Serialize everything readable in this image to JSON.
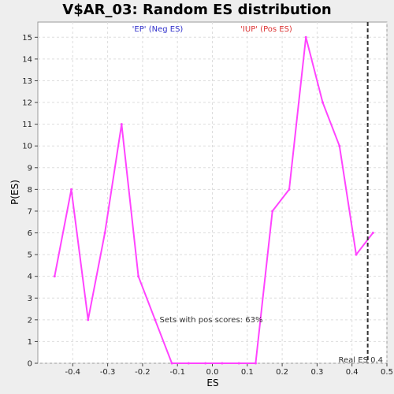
{
  "chart_data": {
    "type": "line",
    "title": "V$AR_03: Random ES distribution",
    "xlabel": "ES",
    "ylabel": "P(ES)",
    "xlim": [
      -0.5,
      0.5
    ],
    "ylim": [
      0,
      15.7
    ],
    "x_ticks": [
      -0.4,
      -0.3,
      -0.2,
      -0.1,
      0.0,
      0.1,
      0.2,
      0.3,
      0.4,
      0.5
    ],
    "x_tick_labels": [
      "-0.4",
      "-0.3",
      "-0.2",
      "-0.1",
      "0.0",
      "0.1",
      "0.2",
      "0.3",
      "0.4",
      "0.5"
    ],
    "y_ticks": [
      0,
      1,
      2,
      3,
      4,
      5,
      6,
      7,
      8,
      9,
      10,
      11,
      12,
      13,
      14,
      15
    ],
    "y_tick_labels": [
      "0",
      "1",
      "2",
      "3",
      "4",
      "5",
      "6",
      "7",
      "8",
      "9",
      "10",
      "11",
      "12",
      "13",
      "14",
      "15"
    ],
    "grid": true,
    "series": [
      {
        "color": "#ff44ff",
        "x": [
          -0.452,
          -0.404,
          -0.356,
          -0.308,
          -0.26,
          -0.212,
          -0.164,
          -0.116,
          -0.068,
          -0.02,
          0.028,
          0.076,
          0.124,
          0.172,
          0.22,
          0.268,
          0.316,
          0.364,
          0.412,
          0.46
        ],
        "y": [
          4,
          8,
          2,
          6,
          11,
          4,
          2,
          0,
          0,
          0,
          0,
          0,
          0,
          7,
          8,
          15,
          12,
          10,
          5,
          6
        ]
      }
    ],
    "legend": {
      "neg": {
        "label": "'EP' (Neg ES)",
        "color": "#3333cc"
      },
      "pos": {
        "label": "'IUP' (Pos ES)",
        "color": "#dd3333"
      }
    },
    "real_es": {
      "value": 0.445,
      "label": "Real ES 0.4"
    },
    "annotation": "Sets with pos scores: 63%"
  }
}
